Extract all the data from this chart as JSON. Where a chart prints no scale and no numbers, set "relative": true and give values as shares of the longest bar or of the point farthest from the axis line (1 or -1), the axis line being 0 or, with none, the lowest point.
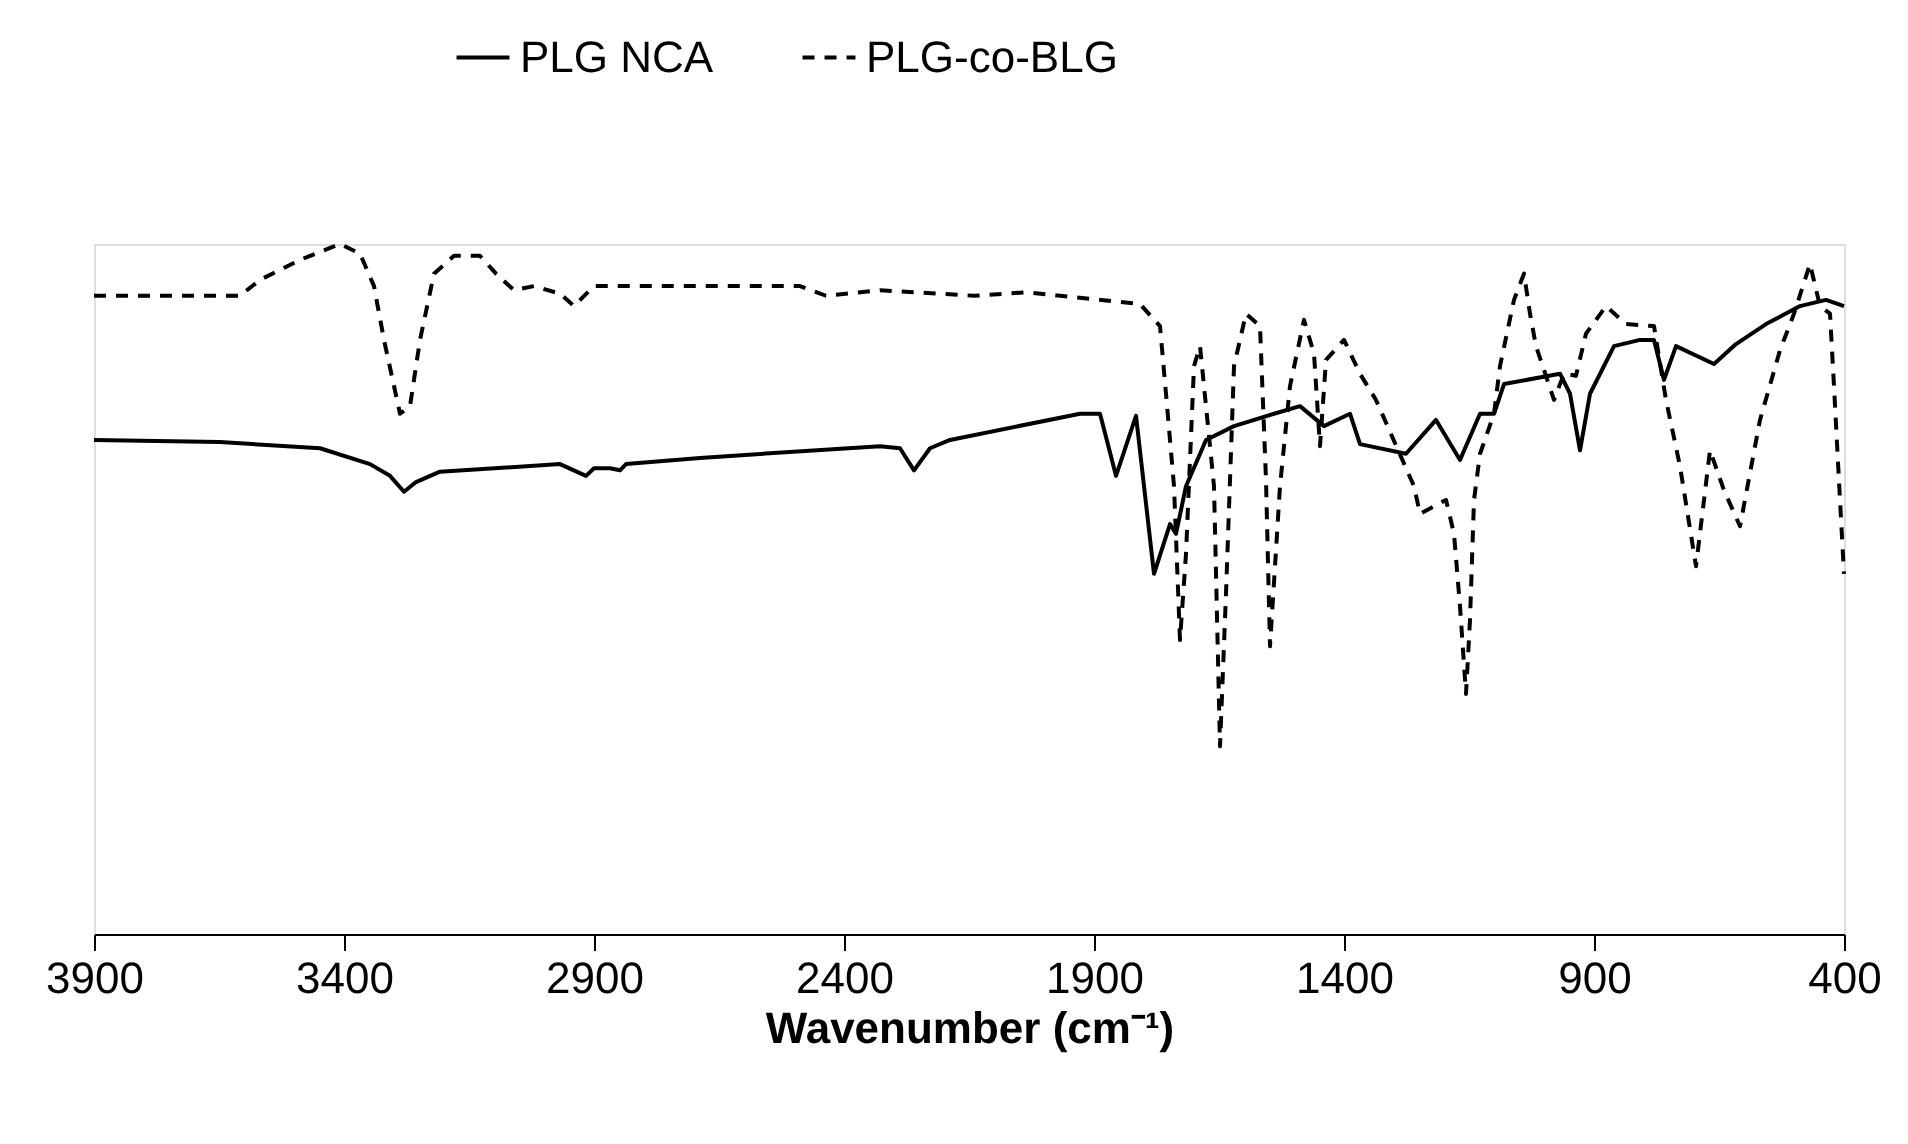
{
  "chart_data": {
    "type": "line",
    "relative": true,
    "xlabel": "Wavenumber (cm⁻¹)",
    "xlim": [
      3900,
      400
    ],
    "xticks": [
      3900,
      3400,
      2900,
      2400,
      1900,
      1400,
      900,
      400
    ],
    "grid": false,
    "legend": "top",
    "marker": "none",
    "tick_labels": "x",
    "series": [
      {
        "name": "PLG NCA",
        "color": "#000000",
        "line_style": "solid",
        "x": [
          3900,
          3648,
          3448,
          3348,
          3308,
          3280,
          3256,
          3208,
          2968,
          2916,
          2900,
          2868,
          2848,
          2836,
          2688,
          2328,
          2288,
          2260,
          2228,
          2188,
          1928,
          1888,
          1856,
          1816,
          1780,
          1748,
          1736,
          1716,
          1676,
          1620,
          1540,
          1488,
          1440,
          1388,
          1368,
          1276,
          1216,
          1168,
          1128,
          1100,
          1080,
          968,
          948,
          928,
          908,
          860,
          808,
          780,
          760,
          736,
          660,
          616,
          556,
          488,
          436,
          400
        ],
        "values": [
          0.716,
          0.713,
          0.704,
          0.681,
          0.664,
          0.641,
          0.655,
          0.67,
          0.681,
          0.664,
          0.675,
          0.675,
          0.672,
          0.681,
          0.69,
          0.707,
          0.704,
          0.672,
          0.704,
          0.716,
          0.754,
          0.754,
          0.664,
          0.751,
          0.522,
          0.594,
          0.58,
          0.649,
          0.716,
          0.736,
          0.754,
          0.765,
          0.736,
          0.754,
          0.71,
          0.696,
          0.745,
          0.687,
          0.754,
          0.754,
          0.797,
          0.812,
          0.783,
          0.701,
          0.783,
          0.852,
          0.861,
          0.861,
          0.803,
          0.852,
          0.826,
          0.855,
          0.884,
          0.91,
          0.919,
          0.91
        ]
      },
      {
        "name": "PLG-co-BLG",
        "color": "#000000",
        "line_style": "dashed",
        "x": [
          3900,
          3608,
          3568,
          3488,
          3408,
          3368,
          3340,
          3320,
          3288,
          3268,
          3248,
          3220,
          3180,
          3128,
          3096,
          3060,
          3020,
          2968,
          2940,
          2900,
          2488,
          2436,
          2328,
          2140,
          2036,
          1808,
          1768,
          1756,
          1740,
          1728,
          1716,
          1700,
          1688,
          1660,
          1648,
          1636,
          1620,
          1596,
          1568,
          1556,
          1548,
          1528,
          1508,
          1480,
          1460,
          1448,
          1436,
          1400,
          1368,
          1336,
          1260,
          1248,
          1196,
          1180,
          1168,
          1156,
          1148,
          1140,
          1128,
          1100,
          1088,
          1060,
          1040,
          1028,
          1016,
          980,
          960,
          936,
          916,
          876,
          836,
          780,
          756,
          728,
          696,
          668,
          640,
          608,
          568,
          528,
          500,
          468,
          448,
          428,
          420,
          408,
          400
        ],
        "values": [
          0.925,
          0.925,
          0.948,
          0.977,
          1.0,
          0.986,
          0.939,
          0.861,
          0.754,
          0.765,
          0.861,
          0.957,
          0.983,
          0.983,
          0.957,
          0.933,
          0.939,
          0.928,
          0.91,
          0.939,
          0.939,
          0.925,
          0.933,
          0.925,
          0.93,
          0.913,
          0.881,
          0.783,
          0.649,
          0.426,
          0.551,
          0.823,
          0.852,
          0.649,
          0.272,
          0.493,
          0.823,
          0.899,
          0.881,
          0.658,
          0.417,
          0.649,
          0.794,
          0.89,
          0.841,
          0.707,
          0.832,
          0.861,
          0.812,
          0.774,
          0.649,
          0.609,
          0.629,
          0.58,
          0.475,
          0.348,
          0.455,
          0.629,
          0.696,
          0.754,
          0.823,
          0.919,
          0.957,
          0.899,
          0.852,
          0.774,
          0.812,
          0.809,
          0.87,
          0.91,
          0.884,
          0.881,
          0.774,
          0.678,
          0.533,
          0.701,
          0.643,
          0.591,
          0.745,
          0.846,
          0.899,
          0.971,
          0.91,
          0.899,
          0.794,
          0.629,
          0.522
        ]
      }
    ]
  }
}
